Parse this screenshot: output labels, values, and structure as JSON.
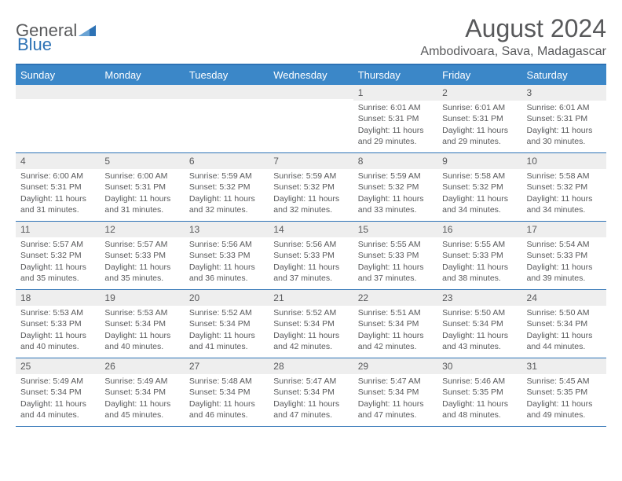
{
  "header": {
    "logo_general": "General",
    "logo_blue": "Blue",
    "month_title": "August 2024",
    "location": "Ambodivoara, Sava, Madagascar"
  },
  "colors": {
    "header_bg": "#3b87c8",
    "border": "#2d72b5",
    "text": "#58595b",
    "daynum_bg": "#eeeeee"
  },
  "day_names": [
    "Sunday",
    "Monday",
    "Tuesday",
    "Wednesday",
    "Thursday",
    "Friday",
    "Saturday"
  ],
  "weeks": [
    [
      {
        "num": "",
        "sunrise": "",
        "sunset": "",
        "daylight1": "",
        "daylight2": ""
      },
      {
        "num": "",
        "sunrise": "",
        "sunset": "",
        "daylight1": "",
        "daylight2": ""
      },
      {
        "num": "",
        "sunrise": "",
        "sunset": "",
        "daylight1": "",
        "daylight2": ""
      },
      {
        "num": "",
        "sunrise": "",
        "sunset": "",
        "daylight1": "",
        "daylight2": ""
      },
      {
        "num": "1",
        "sunrise": "Sunrise: 6:01 AM",
        "sunset": "Sunset: 5:31 PM",
        "daylight1": "Daylight: 11 hours",
        "daylight2": "and 29 minutes."
      },
      {
        "num": "2",
        "sunrise": "Sunrise: 6:01 AM",
        "sunset": "Sunset: 5:31 PM",
        "daylight1": "Daylight: 11 hours",
        "daylight2": "and 29 minutes."
      },
      {
        "num": "3",
        "sunrise": "Sunrise: 6:01 AM",
        "sunset": "Sunset: 5:31 PM",
        "daylight1": "Daylight: 11 hours",
        "daylight2": "and 30 minutes."
      }
    ],
    [
      {
        "num": "4",
        "sunrise": "Sunrise: 6:00 AM",
        "sunset": "Sunset: 5:31 PM",
        "daylight1": "Daylight: 11 hours",
        "daylight2": "and 31 minutes."
      },
      {
        "num": "5",
        "sunrise": "Sunrise: 6:00 AM",
        "sunset": "Sunset: 5:31 PM",
        "daylight1": "Daylight: 11 hours",
        "daylight2": "and 31 minutes."
      },
      {
        "num": "6",
        "sunrise": "Sunrise: 5:59 AM",
        "sunset": "Sunset: 5:32 PM",
        "daylight1": "Daylight: 11 hours",
        "daylight2": "and 32 minutes."
      },
      {
        "num": "7",
        "sunrise": "Sunrise: 5:59 AM",
        "sunset": "Sunset: 5:32 PM",
        "daylight1": "Daylight: 11 hours",
        "daylight2": "and 32 minutes."
      },
      {
        "num": "8",
        "sunrise": "Sunrise: 5:59 AM",
        "sunset": "Sunset: 5:32 PM",
        "daylight1": "Daylight: 11 hours",
        "daylight2": "and 33 minutes."
      },
      {
        "num": "9",
        "sunrise": "Sunrise: 5:58 AM",
        "sunset": "Sunset: 5:32 PM",
        "daylight1": "Daylight: 11 hours",
        "daylight2": "and 34 minutes."
      },
      {
        "num": "10",
        "sunrise": "Sunrise: 5:58 AM",
        "sunset": "Sunset: 5:32 PM",
        "daylight1": "Daylight: 11 hours",
        "daylight2": "and 34 minutes."
      }
    ],
    [
      {
        "num": "11",
        "sunrise": "Sunrise: 5:57 AM",
        "sunset": "Sunset: 5:32 PM",
        "daylight1": "Daylight: 11 hours",
        "daylight2": "and 35 minutes."
      },
      {
        "num": "12",
        "sunrise": "Sunrise: 5:57 AM",
        "sunset": "Sunset: 5:33 PM",
        "daylight1": "Daylight: 11 hours",
        "daylight2": "and 35 minutes."
      },
      {
        "num": "13",
        "sunrise": "Sunrise: 5:56 AM",
        "sunset": "Sunset: 5:33 PM",
        "daylight1": "Daylight: 11 hours",
        "daylight2": "and 36 minutes."
      },
      {
        "num": "14",
        "sunrise": "Sunrise: 5:56 AM",
        "sunset": "Sunset: 5:33 PM",
        "daylight1": "Daylight: 11 hours",
        "daylight2": "and 37 minutes."
      },
      {
        "num": "15",
        "sunrise": "Sunrise: 5:55 AM",
        "sunset": "Sunset: 5:33 PM",
        "daylight1": "Daylight: 11 hours",
        "daylight2": "and 37 minutes."
      },
      {
        "num": "16",
        "sunrise": "Sunrise: 5:55 AM",
        "sunset": "Sunset: 5:33 PM",
        "daylight1": "Daylight: 11 hours",
        "daylight2": "and 38 minutes."
      },
      {
        "num": "17",
        "sunrise": "Sunrise: 5:54 AM",
        "sunset": "Sunset: 5:33 PM",
        "daylight1": "Daylight: 11 hours",
        "daylight2": "and 39 minutes."
      }
    ],
    [
      {
        "num": "18",
        "sunrise": "Sunrise: 5:53 AM",
        "sunset": "Sunset: 5:33 PM",
        "daylight1": "Daylight: 11 hours",
        "daylight2": "and 40 minutes."
      },
      {
        "num": "19",
        "sunrise": "Sunrise: 5:53 AM",
        "sunset": "Sunset: 5:34 PM",
        "daylight1": "Daylight: 11 hours",
        "daylight2": "and 40 minutes."
      },
      {
        "num": "20",
        "sunrise": "Sunrise: 5:52 AM",
        "sunset": "Sunset: 5:34 PM",
        "daylight1": "Daylight: 11 hours",
        "daylight2": "and 41 minutes."
      },
      {
        "num": "21",
        "sunrise": "Sunrise: 5:52 AM",
        "sunset": "Sunset: 5:34 PM",
        "daylight1": "Daylight: 11 hours",
        "daylight2": "and 42 minutes."
      },
      {
        "num": "22",
        "sunrise": "Sunrise: 5:51 AM",
        "sunset": "Sunset: 5:34 PM",
        "daylight1": "Daylight: 11 hours",
        "daylight2": "and 42 minutes."
      },
      {
        "num": "23",
        "sunrise": "Sunrise: 5:50 AM",
        "sunset": "Sunset: 5:34 PM",
        "daylight1": "Daylight: 11 hours",
        "daylight2": "and 43 minutes."
      },
      {
        "num": "24",
        "sunrise": "Sunrise: 5:50 AM",
        "sunset": "Sunset: 5:34 PM",
        "daylight1": "Daylight: 11 hours",
        "daylight2": "and 44 minutes."
      }
    ],
    [
      {
        "num": "25",
        "sunrise": "Sunrise: 5:49 AM",
        "sunset": "Sunset: 5:34 PM",
        "daylight1": "Daylight: 11 hours",
        "daylight2": "and 44 minutes."
      },
      {
        "num": "26",
        "sunrise": "Sunrise: 5:49 AM",
        "sunset": "Sunset: 5:34 PM",
        "daylight1": "Daylight: 11 hours",
        "daylight2": "and 45 minutes."
      },
      {
        "num": "27",
        "sunrise": "Sunrise: 5:48 AM",
        "sunset": "Sunset: 5:34 PM",
        "daylight1": "Daylight: 11 hours",
        "daylight2": "and 46 minutes."
      },
      {
        "num": "28",
        "sunrise": "Sunrise: 5:47 AM",
        "sunset": "Sunset: 5:34 PM",
        "daylight1": "Daylight: 11 hours",
        "daylight2": "and 47 minutes."
      },
      {
        "num": "29",
        "sunrise": "Sunrise: 5:47 AM",
        "sunset": "Sunset: 5:34 PM",
        "daylight1": "Daylight: 11 hours",
        "daylight2": "and 47 minutes."
      },
      {
        "num": "30",
        "sunrise": "Sunrise: 5:46 AM",
        "sunset": "Sunset: 5:35 PM",
        "daylight1": "Daylight: 11 hours",
        "daylight2": "and 48 minutes."
      },
      {
        "num": "31",
        "sunrise": "Sunrise: 5:45 AM",
        "sunset": "Sunset: 5:35 PM",
        "daylight1": "Daylight: 11 hours",
        "daylight2": "and 49 minutes."
      }
    ]
  ]
}
